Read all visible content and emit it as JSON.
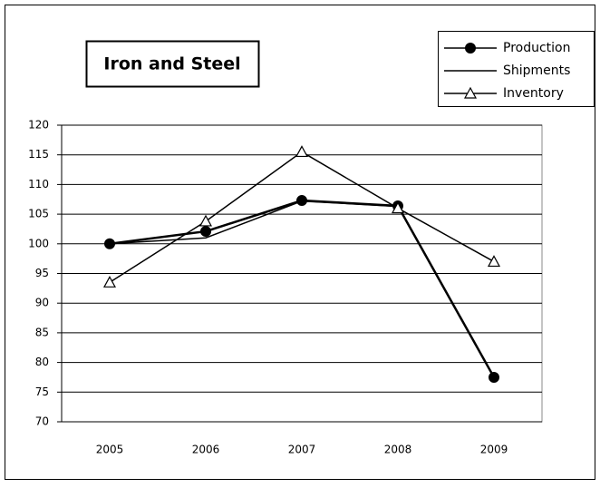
{
  "chart_data": {
    "type": "line",
    "title": "Iron and Steel",
    "categories": [
      "2005",
      "2006",
      "2007",
      "2008",
      "2009"
    ],
    "series": [
      {
        "name": "Production",
        "color": "#000000",
        "marker": "circle",
        "values": [
          100,
          102.1,
          107.3,
          106.4,
          77.5
        ]
      },
      {
        "name": "Shipments",
        "color": "#000000",
        "marker": "none",
        "values": [
          100,
          101,
          107.2,
          106.3,
          77.5
        ]
      },
      {
        "name": "Inventory",
        "color": "#000000",
        "marker": "triangle",
        "values": [
          93.5,
          103.8,
          115.5,
          106,
          97
        ]
      }
    ],
    "ylim": [
      70,
      120
    ],
    "yticks": [
      70,
      75,
      80,
      85,
      90,
      95,
      100,
      105,
      110,
      115,
      120
    ],
    "grid": true,
    "legend": "top-right"
  }
}
